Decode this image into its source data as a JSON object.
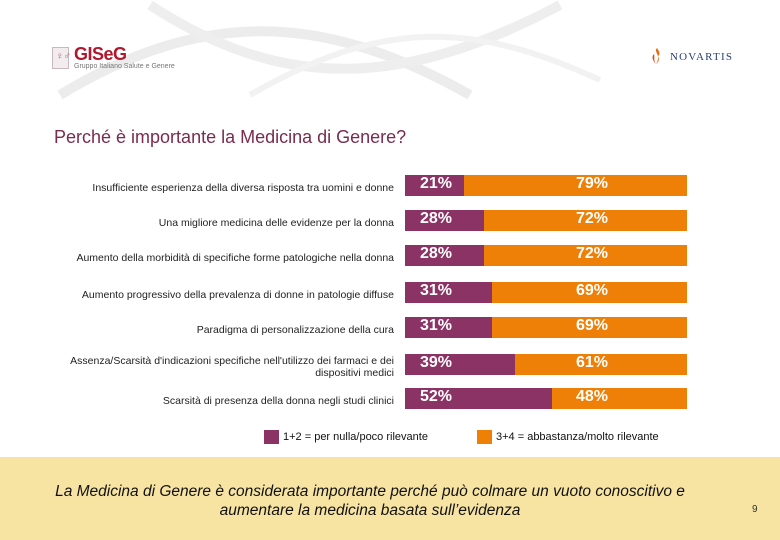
{
  "header": {
    "left_logo": {
      "name": "GISeG",
      "tagline": "Gruppo Italiano Salute e Genere"
    },
    "right_logo": {
      "name": "NOVARTIS"
    }
  },
  "title": "Perché è importante la Medicina di Genere?",
  "chart_data": {
    "type": "bar",
    "orientation": "horizontal",
    "stacked": true,
    "percent_stacked": true,
    "title": "Perché è importante la Medicina di Genere?",
    "categories": [
      "Insufficiente esperienza della diversa risposta tra uomini e donne",
      "Una migliore medicina delle evidenze per la donna",
      "Aumento della morbidità di specifiche forme patologiche nella donna",
      "Aumento progressivo della prevalenza di donne in patologie diffuse",
      "Paradigma di personalizzazione della cura",
      "Assenza/Scarsità d'indicazioni specifiche nell'utilizzo dei farmaci e dei dispositivi medici",
      "Scarsità di presenza della donna negli studi clinici"
    ],
    "series": [
      {
        "name": "1+2 = per nulla/poco rilevante",
        "color": "#8b3365",
        "values": [
          21,
          28,
          28,
          31,
          31,
          39,
          52
        ],
        "labels": [
          "21%",
          "28%",
          "28%",
          "31%",
          "31%",
          "39%",
          "52%"
        ]
      },
      {
        "name": "3+4 = abbastanza/molto rilevante",
        "color": "#ee8008",
        "values": [
          79,
          72,
          72,
          69,
          69,
          61,
          48
        ],
        "labels": [
          "79%",
          "72%",
          "72%",
          "69%",
          "69%",
          "61%",
          "48%"
        ]
      }
    ],
    "xlim": [
      0,
      100
    ],
    "legend_position": "bottom"
  },
  "footer": {
    "text": "La Medicina di Genere è considerata importante perché può colmare un vuoto conoscitivo e aumentare la medicina basata sull’evidenza",
    "page_number": "9"
  },
  "colors": {
    "title": "#7a2b4e",
    "footer_bg": "#f7e4a3"
  }
}
